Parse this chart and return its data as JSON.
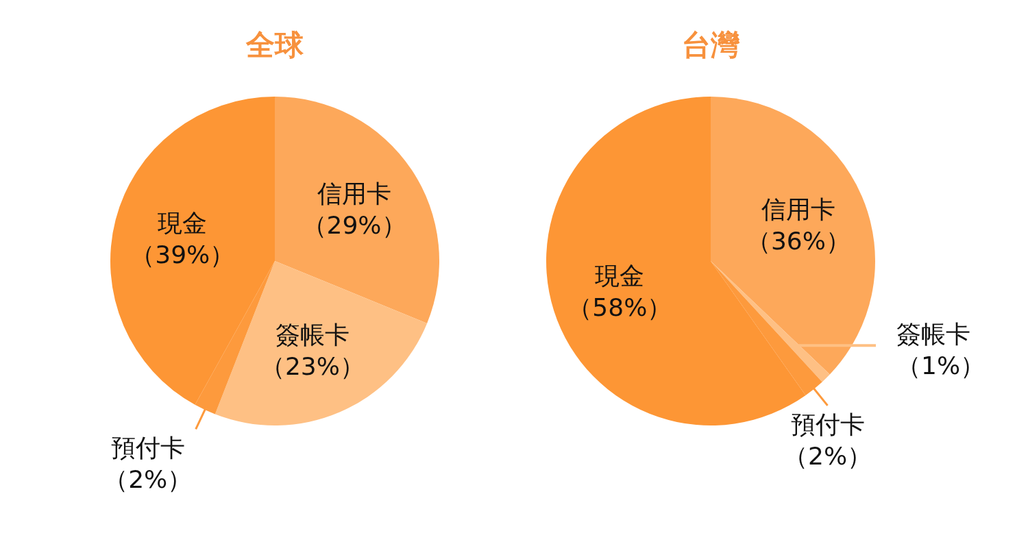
{
  "chart_data": [
    {
      "type": "pie",
      "title": "全球",
      "categories": [
        "信用卡",
        "簽帳卡",
        "預付卡",
        "現金"
      ],
      "values": [
        29,
        23,
        2,
        39
      ],
      "value_labels": [
        "（29%）",
        "（23%）",
        "（2%）",
        "（39%）"
      ],
      "colors": [
        "#fda85a",
        "#fec084",
        "#fd9a3d",
        "#fd9635"
      ]
    },
    {
      "type": "pie",
      "title": "台灣",
      "categories": [
        "信用卡",
        "簽帳卡",
        "預付卡",
        "現金"
      ],
      "values": [
        36,
        1,
        2,
        58
      ],
      "value_labels": [
        "（36%）",
        "（1%）",
        "（2%）",
        "（58%）"
      ],
      "colors": [
        "#fda85a",
        "#fec084",
        "#fd9a3d",
        "#fd9635"
      ]
    }
  ]
}
